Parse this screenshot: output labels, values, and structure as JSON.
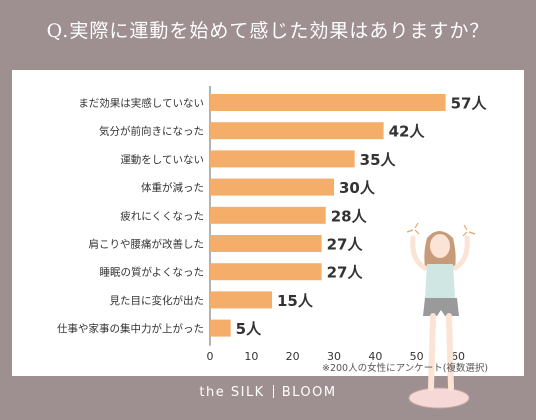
{
  "title": "Q.実際に運動を始めて感じた効果はありますか？",
  "footnote": "※200人の女性にアンケート(複数選択)",
  "brand": {
    "left": "the SILK",
    "right": "BLOOM"
  },
  "colors": {
    "background": "#9e8f91",
    "bar": "#f4ae6a",
    "text": "#333333"
  },
  "chart_data": {
    "type": "bar",
    "orientation": "horizontal",
    "categories": [
      "まだ効果は実感していない",
      "気分が前向きになった",
      "運動をしていない",
      "体重が減った",
      "疲れにくくなった",
      "肩こりや腰痛が改善した",
      "睡眠の質がよくなった",
      "見た目に変化が出た",
      "仕事や家事の集中力が上がった"
    ],
    "values": [
      57,
      42,
      35,
      30,
      28,
      27,
      27,
      15,
      5
    ],
    "value_labels": [
      "57人",
      "42人",
      "35人",
      "30人",
      "28人",
      "27人",
      "27人",
      "15人",
      "5人"
    ],
    "xticks": [
      "0",
      "10",
      "20",
      "30",
      "40",
      "50",
      "60"
    ],
    "xlim": [
      0,
      60
    ],
    "grid": false
  }
}
